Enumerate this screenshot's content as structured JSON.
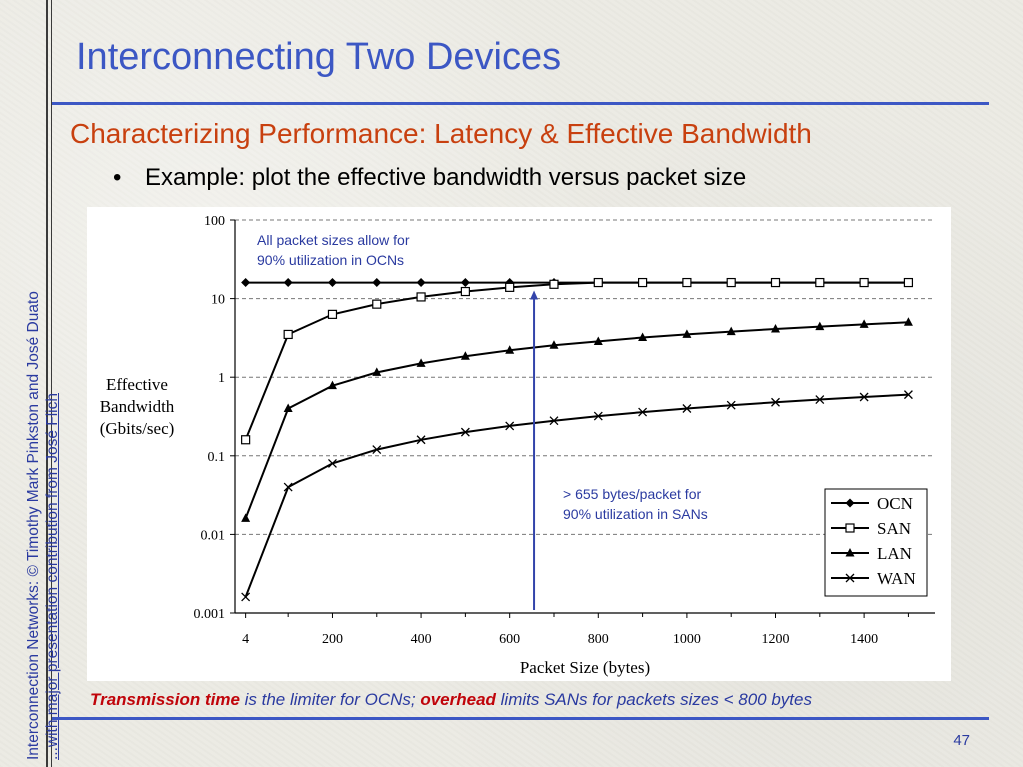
{
  "slide": {
    "title": "Interconnecting Two Devices",
    "subtitle": "Characterizing Performance: Latency & Effective Bandwidth",
    "bullet": "Example: plot the effective bandwidth versus packet size",
    "side_line1": "Interconnection Networks: © Timothy Mark Pinkston and José Duato",
    "side_line2": "...with major presentation contribution from José Flich",
    "caption": {
      "part1": "Transmission time",
      "part2": " is the limiter for OCNs; ",
      "part3": "overhead",
      "part4": " limits SANs for packets sizes < 800 bytes"
    },
    "page_number": "47"
  },
  "colors": {
    "title": "#3c57c4",
    "subtitle": "#c8400f",
    "annotation": "#2a3aa0",
    "caption_highlight": "#c0040a",
    "arrow": "#3344aa"
  },
  "chart_data": {
    "type": "line",
    "ylog": true,
    "xlabel": "Packet Size (bytes)",
    "ylabel": [
      "Effective",
      "Bandwidth",
      "(Gbits/sec)"
    ],
    "xlim": [
      -20,
      1560
    ],
    "ylim": [
      0.001,
      100
    ],
    "xticks": [
      4,
      200,
      400,
      600,
      800,
      1000,
      1200,
      1400
    ],
    "xminor": [
      100,
      300,
      500,
      700,
      900,
      1100,
      1300,
      1500
    ],
    "yticks": [
      0.001,
      0.01,
      0.1,
      1,
      10,
      100
    ],
    "ytick_labels": [
      "0.001",
      "0.01",
      "0.1",
      "1",
      "10",
      "100"
    ],
    "grid": "horizontal-dashed",
    "legend_position": "bottom-right",
    "x": [
      4,
      100,
      200,
      300,
      400,
      500,
      600,
      700,
      800,
      900,
      1000,
      1100,
      1200,
      1300,
      1400,
      1500
    ],
    "series": [
      {
        "name": "OCN",
        "marker": "diamond",
        "values": [
          16,
          16,
          16,
          16,
          16,
          16,
          16,
          16,
          16,
          16,
          16,
          16,
          16,
          16,
          16,
          16
        ]
      },
      {
        "name": "SAN",
        "marker": "square",
        "values": [
          0.16,
          3.5,
          6.3,
          8.5,
          10.5,
          12.3,
          13.9,
          15.2,
          16,
          16,
          16,
          16,
          16,
          16,
          16,
          16
        ]
      },
      {
        "name": "LAN",
        "marker": "triangle",
        "values": [
          0.016,
          0.4,
          0.78,
          1.15,
          1.5,
          1.85,
          2.2,
          2.55,
          2.85,
          3.2,
          3.5,
          3.8,
          4.1,
          4.4,
          4.7,
          5.0
        ]
      },
      {
        "name": "WAN",
        "marker": "x",
        "values": [
          0.0016,
          0.04,
          0.08,
          0.12,
          0.16,
          0.2,
          0.24,
          0.28,
          0.32,
          0.36,
          0.4,
          0.44,
          0.48,
          0.52,
          0.56,
          0.6
        ]
      }
    ],
    "annotations": [
      {
        "name": "ocn-annotation",
        "lines": [
          "All packet sizes allow for",
          "90% utilization in OCNs"
        ]
      },
      {
        "name": "san-annotation",
        "lines": [
          "> 655 bytes/packet for",
          "90% utilization in SANs"
        ]
      }
    ],
    "arrow": {
      "x": 655,
      "from_y": 0.001,
      "to_y": 16
    }
  }
}
